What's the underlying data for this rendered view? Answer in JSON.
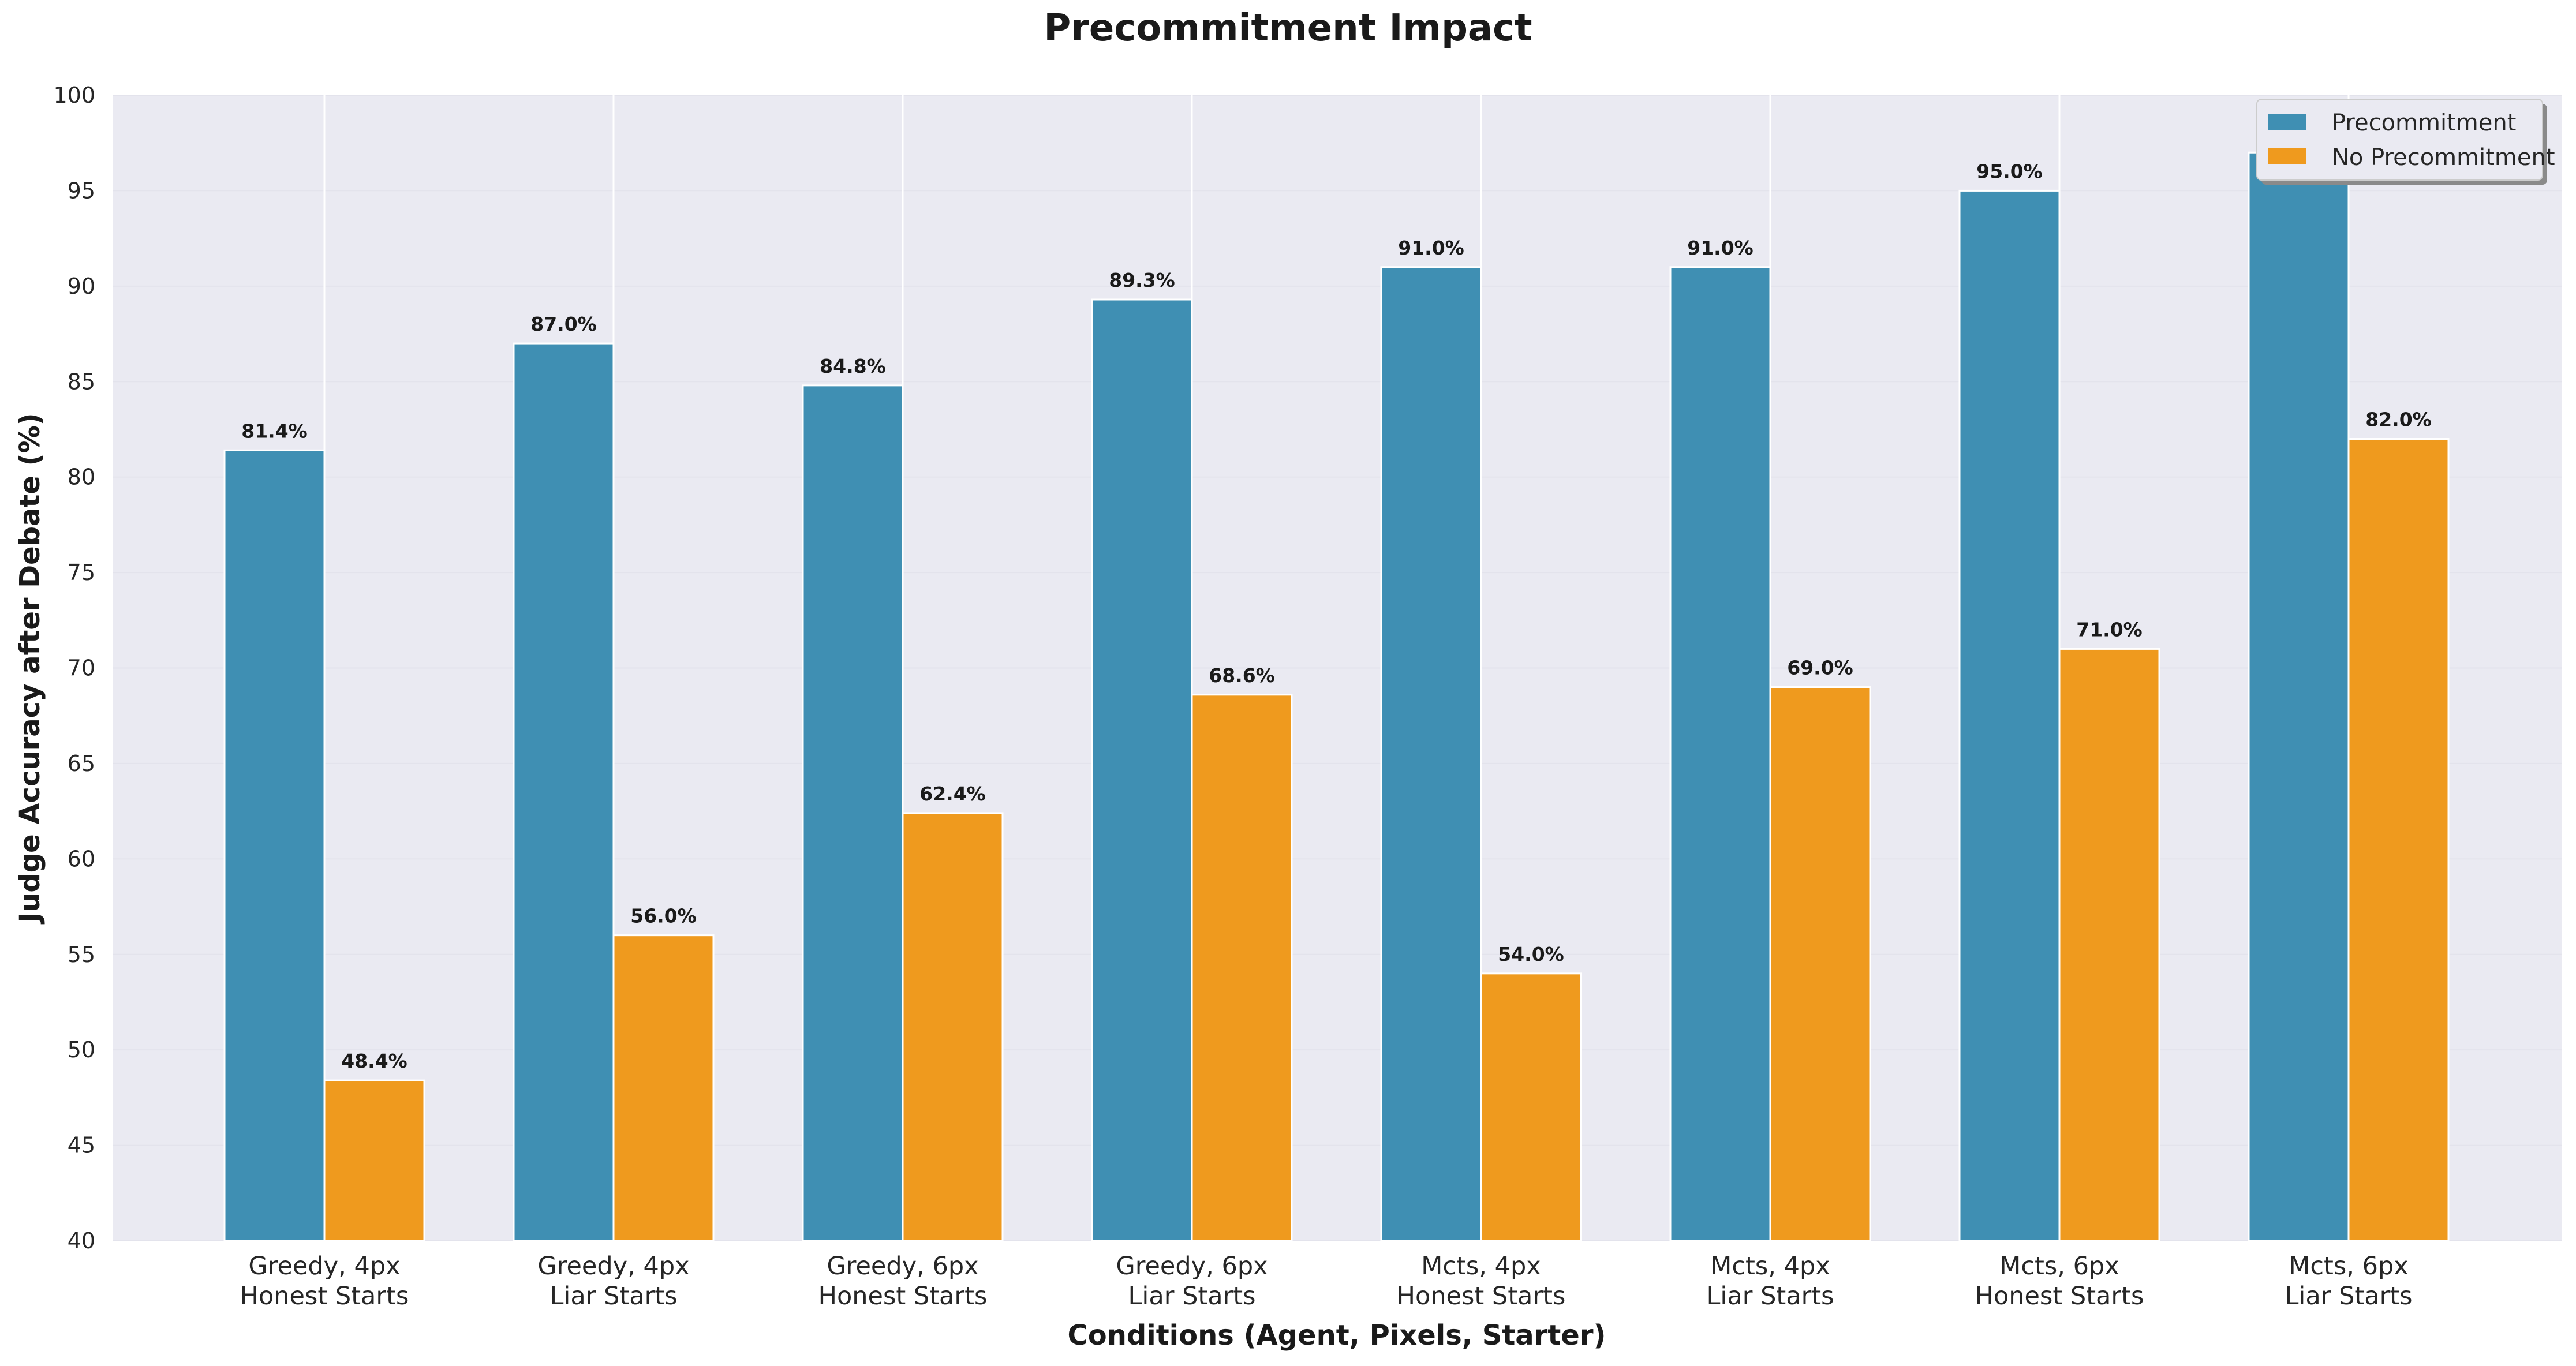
{
  "chart_data": {
    "type": "bar",
    "title": "Precommitment Impact",
    "xlabel": "Conditions (Agent, Pixels, Starter)",
    "ylabel": "Judge Accuracy after Debate (%)",
    "ylim": [
      40,
      100
    ],
    "yticks": [
      40,
      45,
      50,
      55,
      60,
      65,
      70,
      75,
      80,
      85,
      90,
      95,
      100
    ],
    "categories": [
      [
        "Greedy, 4px",
        "Honest Starts"
      ],
      [
        "Greedy, 4px",
        "Liar Starts"
      ],
      [
        "Greedy, 6px",
        "Honest Starts"
      ],
      [
        "Greedy, 6px",
        "Liar Starts"
      ],
      [
        "Mcts, 4px",
        "Honest Starts"
      ],
      [
        "Mcts, 4px",
        "Liar Starts"
      ],
      [
        "Mcts, 6px",
        "Honest Starts"
      ],
      [
        "Mcts, 6px",
        "Liar Starts"
      ]
    ],
    "series": [
      {
        "name": "Precommitment",
        "color": "#3f8fb3",
        "values": [
          81.4,
          87.0,
          84.8,
          89.3,
          91.0,
          91.0,
          95.0,
          97.0
        ],
        "labels": [
          "81.4%",
          "87.0%",
          "84.8%",
          "89.3%",
          "91.0%",
          "91.0%",
          "95.0%",
          ""
        ]
      },
      {
        "name": "No Precommitment",
        "color": "#ef9a1e",
        "values": [
          48.4,
          56.0,
          62.4,
          68.6,
          54.0,
          69.0,
          71.0,
          82.0
        ],
        "labels": [
          "48.4%",
          "56.0%",
          "62.4%",
          "68.6%",
          "54.0%",
          "69.0%",
          "71.0%",
          "82.0%"
        ]
      }
    ],
    "legend_position": "top-right",
    "grid": true,
    "background": "#eaeaf2"
  }
}
